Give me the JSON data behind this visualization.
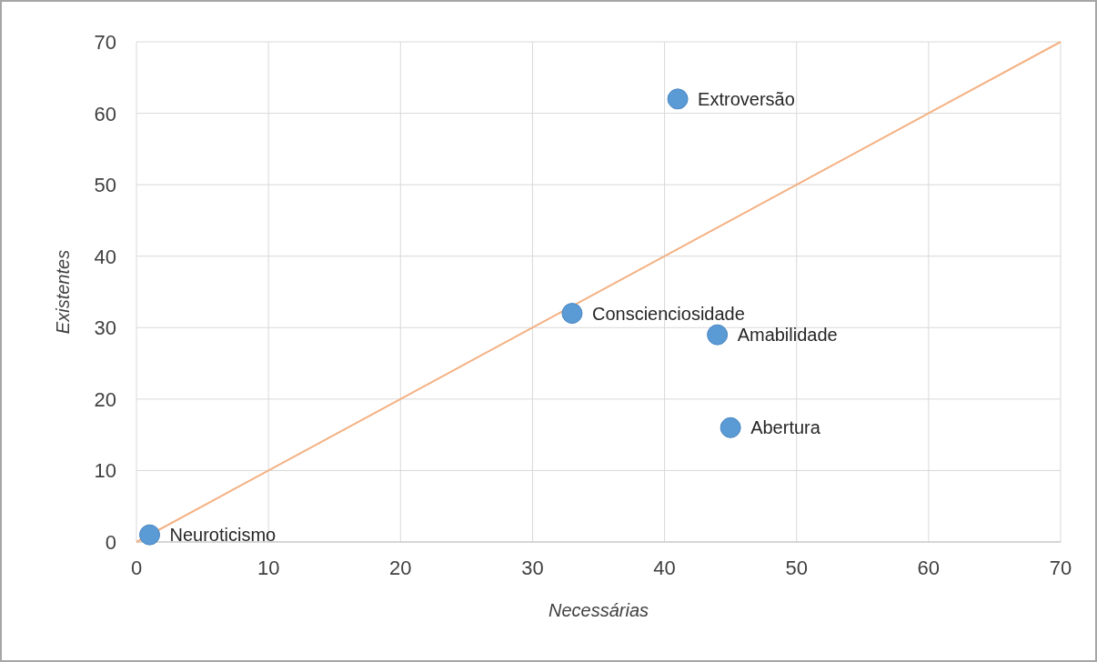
{
  "chart_data": {
    "type": "scatter",
    "xlabel": "Necessárias",
    "ylabel": "Existentes",
    "xlim": [
      0,
      70
    ],
    "ylim": [
      0,
      70
    ],
    "xticks": [
      0,
      10,
      20,
      30,
      40,
      50,
      60,
      70
    ],
    "yticks": [
      0,
      10,
      20,
      30,
      40,
      50,
      60,
      70
    ],
    "grid": true,
    "marker": "circle",
    "series": [
      {
        "type": "line",
        "color": "#f4b183",
        "x": [
          0,
          70
        ],
        "values": [
          0,
          70
        ],
        "marker": "none"
      },
      {
        "color": "#5b9bd5",
        "x": [
          1,
          33,
          41,
          44,
          45
        ],
        "values": [
          1,
          32,
          62,
          29,
          16
        ]
      }
    ],
    "annotations": [
      {
        "text": "Neuroticismo",
        "x": 1,
        "y": 1
      },
      {
        "text": "Conscienciosidade",
        "x": 33,
        "y": 32
      },
      {
        "text": "Extroversão",
        "x": 41,
        "y": 62
      },
      {
        "text": "Amabilidade",
        "x": 44,
        "y": 29
      },
      {
        "text": "Abertura",
        "x": 45,
        "y": 16
      }
    ]
  }
}
